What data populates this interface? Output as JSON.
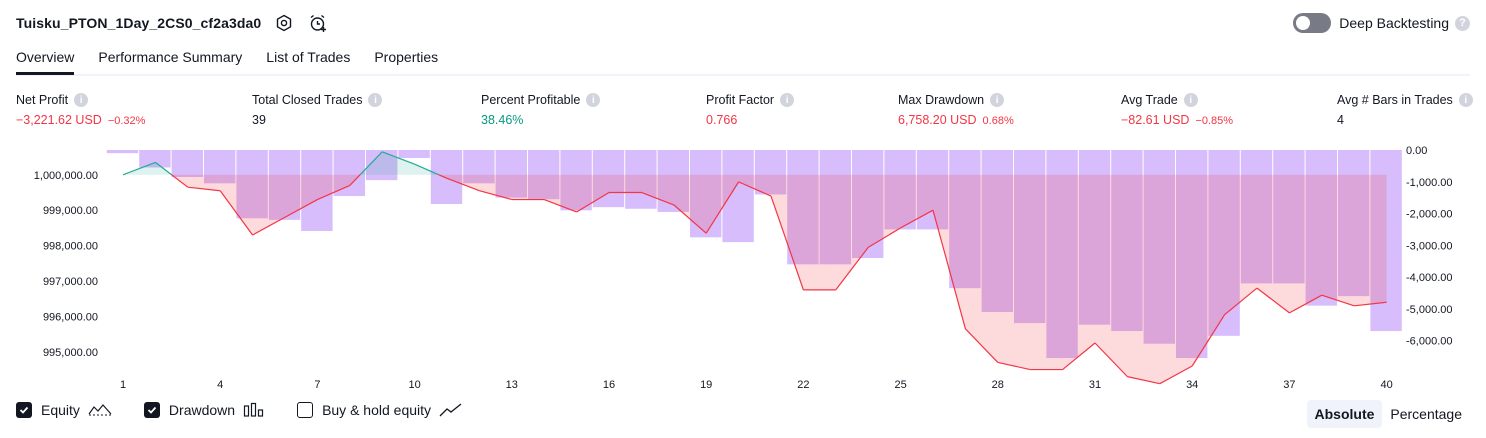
{
  "header": {
    "title": "Tuisku_PTON_1Day_2CS0_cf2a3da0",
    "settings_icon": "settings-hex-icon",
    "alert_icon": "alarm-add-icon",
    "deep_backtesting_label": "Deep Backtesting",
    "deep_backtesting_on": false
  },
  "tabs": [
    {
      "label": "Overview",
      "active": true
    },
    {
      "label": "Performance Summary",
      "active": false
    },
    {
      "label": "List of Trades",
      "active": false
    },
    {
      "label": "Properties",
      "active": false
    }
  ],
  "stats": {
    "net_profit": {
      "label": "Net Profit",
      "value": "−3,221.62 USD",
      "pct": "−0.32%"
    },
    "total_closed_trades": {
      "label": "Total Closed Trades",
      "value": "39"
    },
    "percent_profitable": {
      "label": "Percent Profitable",
      "value": "38.46%"
    },
    "profit_factor": {
      "label": "Profit Factor",
      "value": "0.766"
    },
    "max_drawdown": {
      "label": "Max Drawdown",
      "value": "6,758.20 USD",
      "pct": "0.68%"
    },
    "avg_trade": {
      "label": "Avg Trade",
      "value": "−82.61 USD",
      "pct": "−0.85%"
    },
    "avg_bars": {
      "label": "Avg # Bars in Trades",
      "value": "4"
    }
  },
  "colors": {
    "negative": "#f23645",
    "positive": "#089981",
    "drawdown_bar": "#d7bdfb",
    "equity_line_down": "#f23645",
    "equity_line_up": "#22ab94"
  },
  "chart_data": {
    "type": "line+bar",
    "x_ticks": [
      "1",
      "4",
      "7",
      "10",
      "13",
      "16",
      "19",
      "22",
      "25",
      "28",
      "31",
      "34",
      "37",
      "40"
    ],
    "left_axis": {
      "ticks": [
        "1,000,000.00",
        "999,000.00",
        "998,000.00",
        "997,000.00",
        "996,000.00",
        "995,000.00"
      ],
      "range": [
        994600,
        1000700
      ]
    },
    "right_axis": {
      "ticks": [
        "0.00",
        "-1,000.00",
        "-2,000.00",
        "-3,000.00",
        "-4,000.00",
        "-5,000.00",
        "-6,000.00"
      ],
      "range": [
        -6800,
        0
      ]
    },
    "initial_capital": 1000000,
    "equity": [
      1000000,
      1000350,
      999650,
      999550,
      998300,
      998800,
      999300,
      999700,
      1000650,
      1000300,
      999900,
      999550,
      999300,
      999300,
      998950,
      999500,
      999500,
      999150,
      998350,
      999800,
      999400,
      996750,
      996750,
      997950,
      998500,
      999000,
      995650,
      994700,
      994500,
      994500,
      995250,
      994300,
      994100,
      994600,
      996050,
      996800,
      996100,
      996600,
      996300,
      996400
    ],
    "drawdown": [
      -100,
      -550,
      -850,
      -1050,
      -2150,
      -2200,
      -2550,
      -1450,
      -950,
      -250,
      -1700,
      -1050,
      -1500,
      -1550,
      -1900,
      -1800,
      -1850,
      -1950,
      -2750,
      -2900,
      -1400,
      -3600,
      -3600,
      -3400,
      -2500,
      -2500,
      -4350,
      -5100,
      -5450,
      -6550,
      -5500,
      -5700,
      -6100,
      -6550,
      -5850,
      -4200,
      -4200,
      -4900,
      -4600,
      -5700
    ],
    "series": [
      {
        "name": "Equity"
      },
      {
        "name": "Drawdown"
      },
      {
        "name": "Buy & hold equity"
      }
    ]
  },
  "legend": {
    "equity": {
      "label": "Equity",
      "checked": true,
      "icon": "equity-line-icon"
    },
    "drawdown": {
      "label": "Drawdown",
      "checked": true,
      "icon": "drawdown-bars-icon"
    },
    "buy_hold": {
      "label": "Buy & hold equity",
      "checked": false,
      "icon": "buy-hold-line-icon"
    }
  },
  "mode": {
    "absolute": "Absolute",
    "percentage": "Percentage",
    "selected": "Absolute"
  }
}
